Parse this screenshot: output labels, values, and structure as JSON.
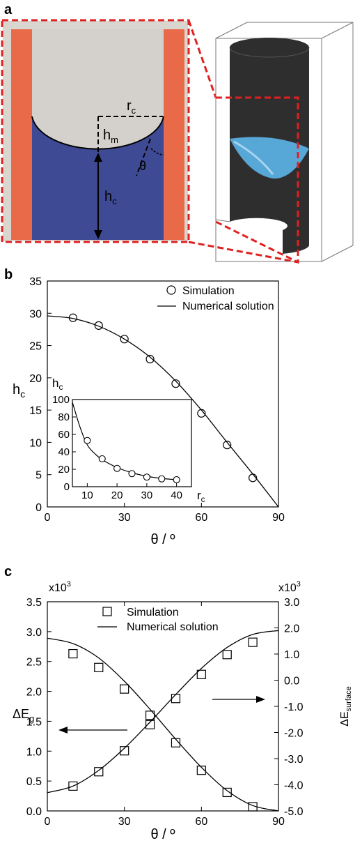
{
  "panel_a": {
    "label": "a",
    "labels": {
      "r": "r",
      "r_sub": "c",
      "hm": "h",
      "hm_sub": "m",
      "hc": "h",
      "hc_sub": "c",
      "theta": "θ"
    },
    "colors": {
      "wall": "#e96a48",
      "gas": "#d4d1cc",
      "liquid": "#3e4a94",
      "frame": "#d9d6d0",
      "cylinder": "#2e2e2e",
      "meniscus": "#5aaee0",
      "zoom": "#e02020"
    }
  },
  "panel_b": {
    "label": "b",
    "legend": {
      "sim": "Simulation",
      "num": "Numerical solution"
    },
    "inset": {
      "ylabel": "h",
      "ylabel_sub": "c",
      "xlabel": "r",
      "xlabel_sub": "c"
    }
  },
  "panel_c": {
    "label": "c",
    "legend": {
      "sim": "Simulation",
      "num": "Numerical solution"
    },
    "left_mult": "x10",
    "left_mult_sup": "3",
    "right_mult": "x10",
    "right_mult_sup": "3",
    "right_label": "ΔE",
    "right_label_sub": "surface"
  },
  "chart_data": [
    {
      "type": "scatter",
      "panel": "b",
      "xlabel": "θ / º",
      "ylabel": "h",
      "ylabel_sub": "c",
      "xlim": [
        0,
        90
      ],
      "ylim": [
        0,
        35
      ],
      "xticks": [
        0,
        30,
        60,
        90
      ],
      "yticks": [
        0,
        5,
        10,
        15,
        20,
        25,
        30,
        35
      ],
      "series": [
        {
          "name": "Simulation",
          "marker": "circle",
          "x": [
            10,
            20,
            30,
            40,
            50,
            60,
            70,
            80
          ],
          "y": [
            29.3,
            28.1,
            26.0,
            22.9,
            19.1,
            14.5,
            9.6,
            4.5
          ]
        },
        {
          "name": "Numerical solution",
          "line": true,
          "x": [
            0,
            10,
            20,
            30,
            40,
            50,
            60,
            70,
            80,
            90
          ],
          "y": [
            29.6,
            29.2,
            28.0,
            26.0,
            23.2,
            19.5,
            15.0,
            10.0,
            5.1,
            0.0
          ]
        }
      ]
    },
    {
      "type": "scatter",
      "panel": "b-inset",
      "xlim": [
        5,
        45
      ],
      "ylim": [
        0,
        100
      ],
      "xticks": [
        10,
        20,
        30,
        40
      ],
      "yticks": [
        0,
        20,
        40,
        60,
        80,
        100
      ],
      "series": [
        {
          "marker": "circle",
          "x": [
            10,
            15,
            20,
            25,
            30,
            35,
            40
          ],
          "y": [
            53,
            32,
            21,
            15,
            11,
            9,
            8
          ]
        },
        {
          "line": true,
          "x": [
            5,
            7.5,
            10,
            12.5,
            15,
            20,
            25,
            30,
            35,
            40
          ],
          "y": [
            97,
            69,
            48,
            38,
            31,
            22,
            16,
            12,
            9.5,
            8
          ]
        }
      ]
    },
    {
      "type": "scatter",
      "panel": "c",
      "xlabel": "θ / º",
      "ylabel": "ΔE",
      "ylabel_sub": "g",
      "xlim": [
        0,
        90
      ],
      "ylim": [
        0,
        3.5
      ],
      "ylim_right": [
        -5.0,
        3.0
      ],
      "xticks": [
        0,
        30,
        60,
        90
      ],
      "yticks": [
        0.0,
        0.5,
        1.0,
        1.5,
        2.0,
        2.5,
        3.0,
        3.5
      ],
      "yticks_right": [
        -5.0,
        -4.0,
        -3.0,
        -2.0,
        -1.0,
        0.0,
        1.0,
        2.0,
        3.0
      ],
      "ytick_labels": [
        "0.0",
        "0.5",
        "1.0",
        "1.5",
        "2.0",
        "2.5",
        "3.0",
        "3.5"
      ],
      "ytick_labels_right": [
        "-5.0",
        "-4.0",
        "-3.0",
        "-2.0",
        "-1.0",
        "0.0",
        "1.0",
        "2.0",
        "3.0"
      ],
      "series": [
        {
          "name": "Simulation",
          "axis": "left",
          "marker": "square",
          "x": [
            10,
            20,
            30,
            40,
            50,
            60,
            70,
            80
          ],
          "y": [
            2.63,
            2.4,
            2.04,
            1.6,
            1.14,
            0.68,
            0.31,
            0.07
          ]
        },
        {
          "axis": "right",
          "marker": "square",
          "x": [
            10,
            20,
            30,
            40,
            50,
            60,
            70,
            80
          ],
          "y": [
            -4.05,
            -3.5,
            -2.7,
            -1.7,
            -0.7,
            0.22,
            0.98,
            1.45
          ]
        },
        {
          "name": "Numerical solution",
          "axis": "left",
          "line": true,
          "x": [
            0,
            10,
            20,
            30,
            40,
            50,
            60,
            70,
            80,
            90
          ],
          "y": [
            2.89,
            2.8,
            2.56,
            2.17,
            1.7,
            1.2,
            0.73,
            0.34,
            0.09,
            0.0
          ]
        },
        {
          "axis": "right",
          "line": true,
          "x": [
            0,
            10,
            20,
            30,
            40,
            50,
            60,
            70,
            80,
            90
          ],
          "y": [
            -4.3,
            -4.05,
            -3.45,
            -2.6,
            -1.6,
            -0.55,
            0.45,
            1.25,
            1.75,
            1.9
          ]
        }
      ]
    }
  ]
}
